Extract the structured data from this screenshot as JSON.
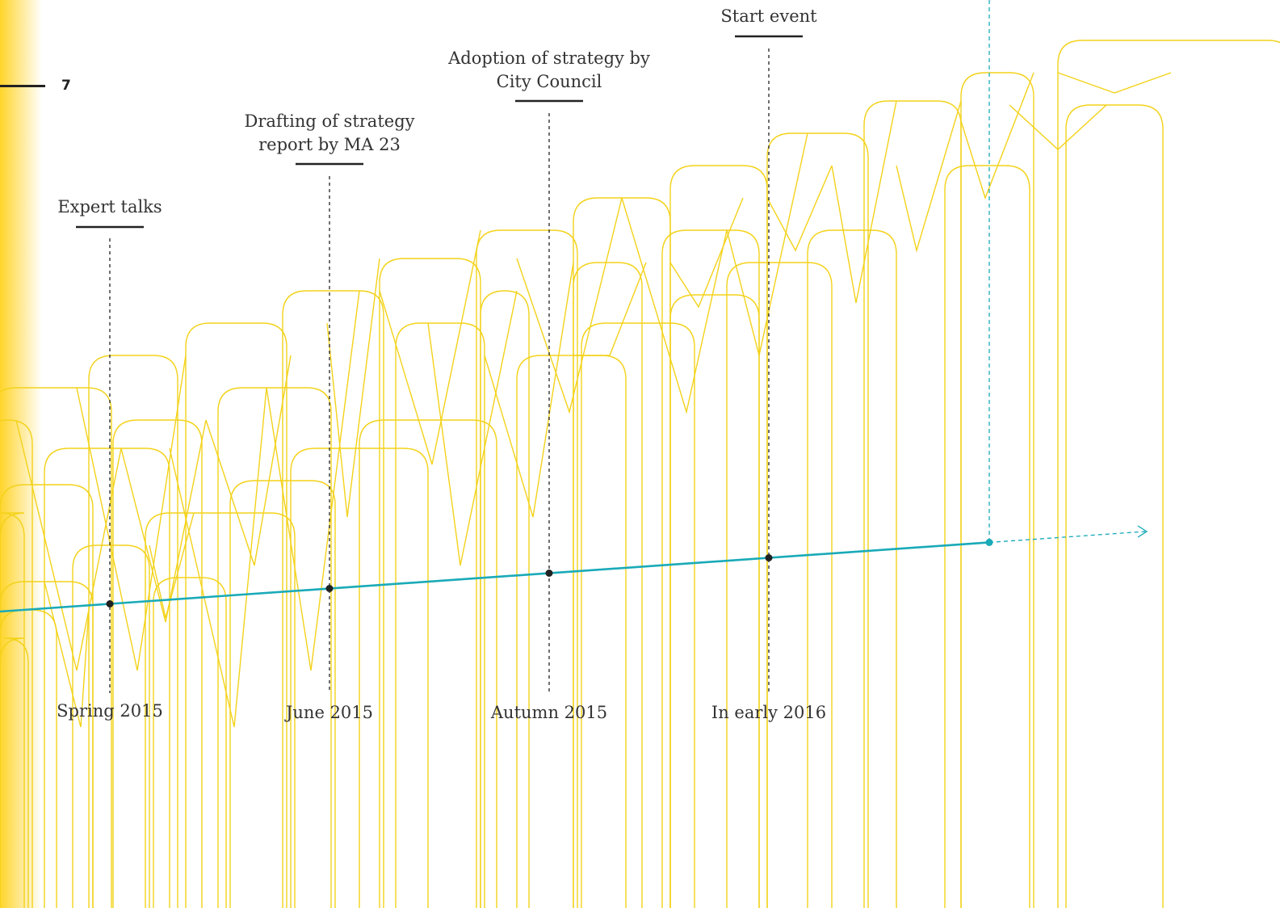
{
  "page_number": "7",
  "colors": {
    "timeline": "#1aaab8",
    "yellow_lines": "#f3d21a",
    "gradient_left": "#ffd21f",
    "text": "#333333",
    "marker": "#222222"
  },
  "milestones": [
    {
      "id": "expert-talks",
      "event": "Expert talks",
      "date": "Spring 2015"
    },
    {
      "id": "drafting",
      "event": "Drafting of strategy report by MA 23",
      "event_lines": [
        "Drafting of strategy",
        "report by MA 23"
      ],
      "date": "June 2015"
    },
    {
      "id": "adoption",
      "event": "Adoption of strategy by City Council",
      "event_lines": [
        "Adoption of strategy by",
        "City Council"
      ],
      "date": "Autumn 2015"
    },
    {
      "id": "start-event",
      "event": "Start event",
      "date": "In early 2016"
    }
  ]
}
